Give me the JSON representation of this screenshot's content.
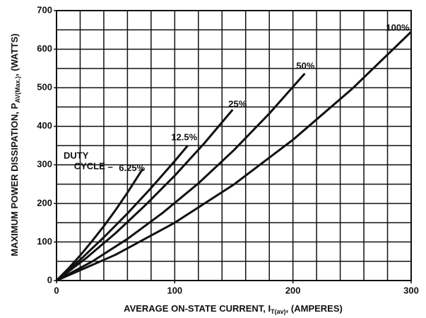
{
  "chart_data": {
    "type": "line",
    "x_label": [
      "AVERAGE ON-STATE CURRENT, I",
      "T(av)",
      ", (AMPERES)"
    ],
    "y_label": [
      "MAXIMUM POWER DISSIPATION, P",
      "AV(Max.)",
      ", (WATTS)"
    ],
    "annotations": [
      "DUTY",
      "CYCLE ="
    ],
    "xlim": [
      0,
      300
    ],
    "xticks": [
      0,
      100,
      200,
      300
    ],
    "ylim": [
      0,
      700
    ],
    "yticks": [
      0,
      100,
      200,
      300,
      400,
      500,
      600,
      700
    ],
    "xgrid": [
      0,
      20,
      40,
      60,
      80,
      100,
      120,
      140,
      160,
      180,
      200,
      220,
      240,
      260,
      280,
      300
    ],
    "ygrid": [
      0,
      50,
      100,
      150,
      200,
      250,
      300,
      350,
      400,
      450,
      500,
      550,
      600,
      650,
      700
    ],
    "grid": true,
    "series": [
      {
        "name": "6.25%",
        "color": "#111111",
        "x": [
          0,
          10,
          20,
          30,
          40,
          50,
          60,
          73
        ],
        "values": [
          0,
          31,
          65,
          102,
          141,
          183,
          228,
          290
        ]
      },
      {
        "name": "12.5%",
        "color": "#111111",
        "x": [
          0,
          20,
          40,
          60,
          80,
          100,
          111
        ],
        "values": [
          0,
          54,
          112,
          174,
          240,
          310,
          350
        ]
      },
      {
        "name": "25%",
        "color": "#111111",
        "x": [
          0,
          25,
          50,
          75,
          100,
          125,
          149
        ],
        "values": [
          0,
          58,
          123,
          195,
          272,
          356,
          443
        ]
      },
      {
        "name": "50%",
        "color": "#111111",
        "x": [
          0,
          30,
          60,
          90,
          120,
          150,
          180,
          210
        ],
        "values": [
          0,
          49,
          108,
          176,
          252,
          338,
          433,
          537
        ]
      },
      {
        "name": "100%",
        "color": "#111111",
        "x": [
          0,
          50,
          100,
          150,
          200,
          250,
          300
        ],
        "values": [
          0,
          67,
          150,
          249,
          365,
          497,
          645
        ]
      }
    ]
  }
}
